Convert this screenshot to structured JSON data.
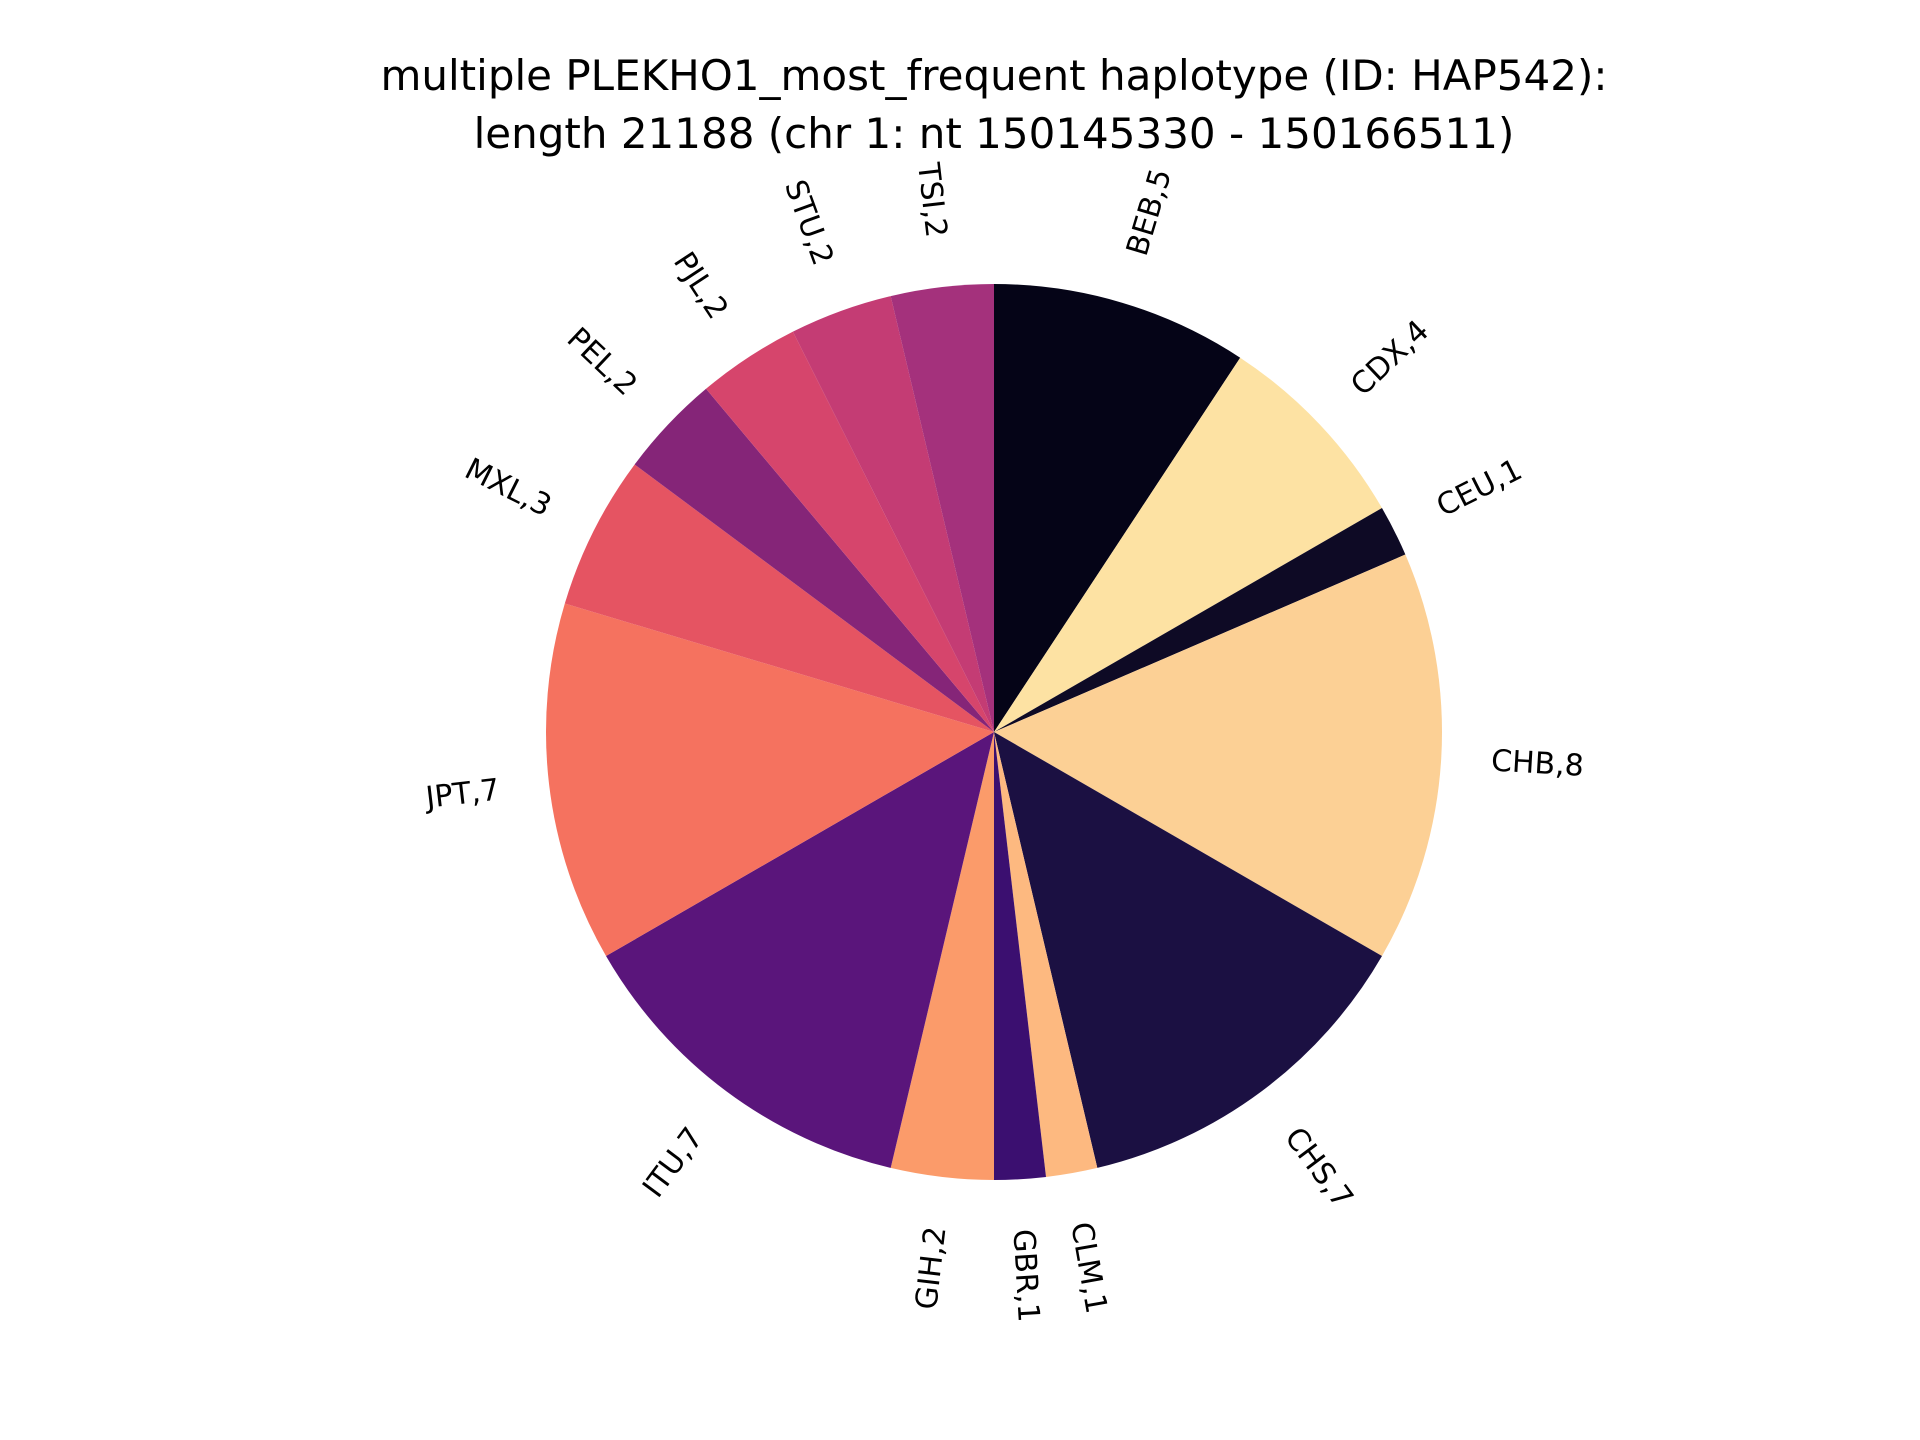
{
  "chart_data": {
    "type": "pie",
    "title_lines": [
      "multiple PLEKHO1_most_frequent haplotype (ID: HAP542):",
      "length 21188 (chr 1: nt 150145330 - 150166511)"
    ],
    "start_angle_deg": 90,
    "direction": "clockwise",
    "slices": [
      {
        "label": "BEB,5",
        "value": 5,
        "color": "#050417"
      },
      {
        "label": "CDX,4",
        "value": 4,
        "color": "#fde2a3"
      },
      {
        "label": "CEU,1",
        "value": 1,
        "color": "#0e0a25"
      },
      {
        "label": "CHB,8",
        "value": 8,
        "color": "#fcd095"
      },
      {
        "label": "CHS,7",
        "value": 7,
        "color": "#1b1042"
      },
      {
        "label": "CLM,1",
        "value": 1,
        "color": "#fdb980"
      },
      {
        "label": "GBR,1",
        "value": 1,
        "color": "#3b0f70"
      },
      {
        "label": "GIH,2",
        "value": 2,
        "color": "#fb9b6a"
      },
      {
        "label": "ITU,7",
        "value": 7,
        "color": "#5a157b"
      },
      {
        "label": "JPT,7",
        "value": 7,
        "color": "#f5725f"
      },
      {
        "label": "MXL,3",
        "value": 3,
        "color": "#e55462"
      },
      {
        "label": "PEL,2",
        "value": 2,
        "color": "#852578"
      },
      {
        "label": "PJL,2",
        "value": 2,
        "color": "#d6456c"
      },
      {
        "label": "STU,2",
        "value": 2,
        "color": "#c43c74"
      },
      {
        "label": "TSI,2",
        "value": 2,
        "color": "#a4317c"
      }
    ]
  }
}
